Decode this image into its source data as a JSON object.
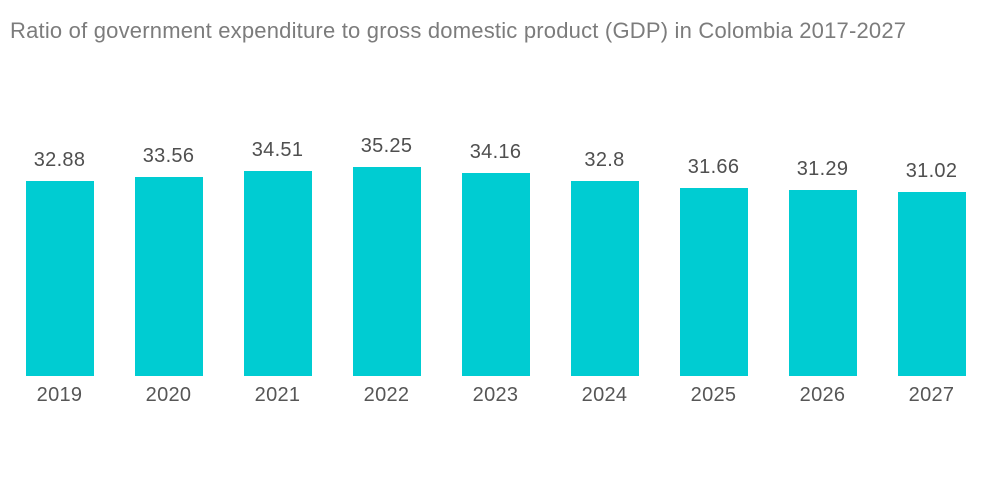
{
  "title": "Ratio of government expenditure to gross domestic product (GDP) in Colombia 2017-2027",
  "colors": {
    "bar": "#00CCD2",
    "title_text": "#7C7C7C",
    "value_label_text": "#4F4F4F",
    "axis_label_text": "#565656",
    "background": "#FFFFFF"
  },
  "chart_data": {
    "type": "bar",
    "title": "Ratio of government expenditure to gross domestic product (GDP) in Colombia 2017-2027",
    "categories": [
      "2019",
      "2020",
      "2021",
      "2022",
      "2023",
      "2024",
      "2025",
      "2026",
      "2027"
    ],
    "values": [
      32.88,
      33.56,
      34.51,
      35.25,
      34.16,
      32.8,
      31.66,
      31.29,
      31.02
    ],
    "value_labels": [
      "32.88",
      "33.56",
      "34.51",
      "35.25",
      "34.16",
      "32.8",
      "31.66",
      "31.29",
      "31.02"
    ],
    "xlabel": "",
    "ylabel": "",
    "ylim": [
      0,
      40
    ],
    "grid": false,
    "legend": false,
    "axes_visible": false,
    "data_labels_position": "above-bars"
  }
}
